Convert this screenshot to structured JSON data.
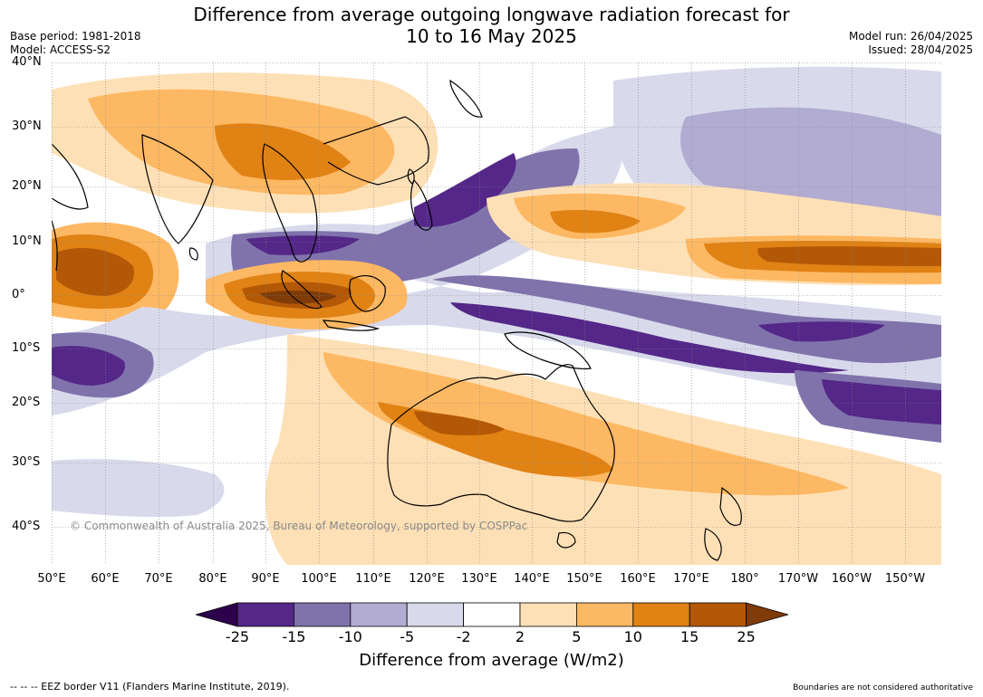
{
  "title_line1": "Difference from average outgoing longwave radiation forecast for",
  "title_line2": "10 to 16 May 2025",
  "base_period": "Base period: 1981-2018",
  "model": "Model: ACCESS-S2",
  "model_run": "Model run: 26/04/2025",
  "issued": "Issued: 28/04/2025",
  "copyright": "© Commonwealth of Australia 2025, Bureau of Meteorology, supported by COSPPac",
  "colorbar": {
    "title": "Difference from average (W/m2)",
    "ticks": [
      "-25",
      "-15",
      "-10",
      "-5",
      "-2",
      "2",
      "5",
      "10",
      "15",
      "25"
    ],
    "colors": [
      "#2d004b",
      "#542788",
      "#8073ac",
      "#b2abd2",
      "#d8daeb",
      "#ffffff",
      "#fee0b6",
      "#fdb863",
      "#e08214",
      "#b35806",
      "#7f3b08"
    ]
  },
  "latitude_labels": [
    "40°N",
    "30°N",
    "20°N",
    "10°N",
    "0°",
    "10°S",
    "20°S",
    "30°S",
    "40°S"
  ],
  "longitude_labels": [
    "50°E",
    "60°E",
    "70°E",
    "80°E",
    "90°E",
    "100°E",
    "110°E",
    "120°E",
    "130°E",
    "140°E",
    "150°E",
    "160°E",
    "170°E",
    "180°",
    "170°W",
    "160°W",
    "150°W"
  ],
  "footer_left": "--  --  -- EEZ border V11 (Flanders Marine Institute, 2019).",
  "footer_right": "Boundaries are not considered authoritative"
}
